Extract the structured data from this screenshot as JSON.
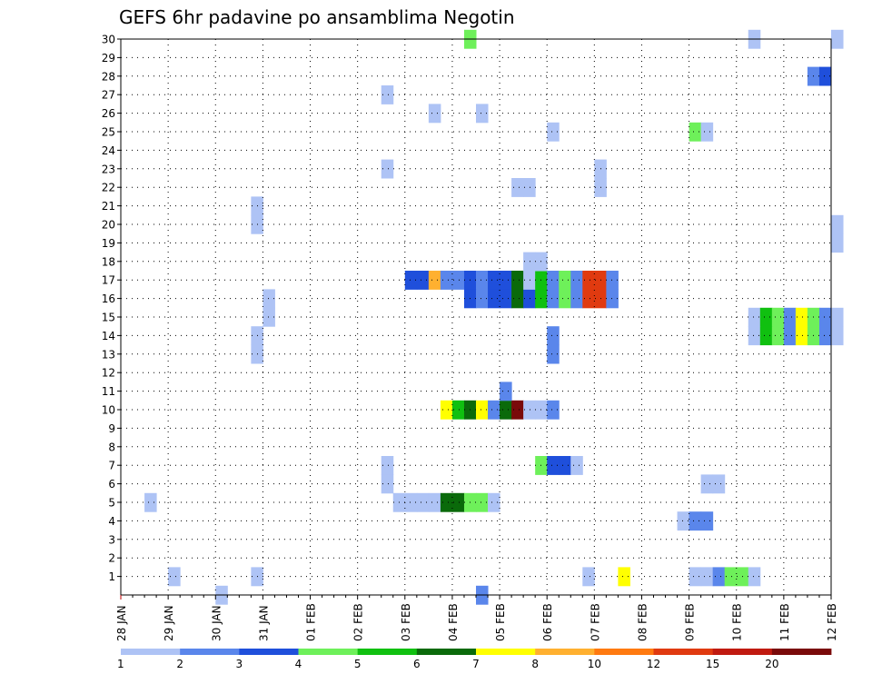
{
  "chart_data": {
    "type": "heatmap",
    "title": "GEFS 6hr padavine po ansamblima Negotin",
    "xlabel": "",
    "ylabel": "",
    "x_ticks": [
      "28 JAN",
      "29 JAN",
      "30 JAN",
      "31 JAN",
      "01 FEB",
      "02 FEB",
      "03 FEB",
      "04 FEB",
      "05 FEB",
      "06 FEB",
      "07 FEB",
      "08 FEB",
      "09 FEB",
      "10 FEB",
      "11 FEB",
      "12 FEB"
    ],
    "x_unit": "6-hour steps from 28 JAN 00Z (4 steps per day)",
    "y_ticks": [
      "1",
      "2",
      "3",
      "4",
      "5",
      "6",
      "7",
      "8",
      "9",
      "10",
      "11",
      "12",
      "13",
      "14",
      "15",
      "16",
      "17",
      "18",
      "19",
      "20",
      "21",
      "22",
      "23",
      "24",
      "25",
      "26",
      "27",
      "28",
      "29",
      "30"
    ],
    "y_range": [
      0,
      30
    ],
    "grid": true,
    "legend_position": "bottom",
    "legend": {
      "labels": [
        "1",
        "2",
        "3",
        "4",
        "5",
        "6",
        "7",
        "8",
        "10",
        "12",
        "15",
        "20"
      ],
      "colors": [
        "#aec3f5",
        "#5a86eb",
        "#1f4fdb",
        "#6ef05a",
        "#10c010",
        "#0a6a0a",
        "#ffff00",
        "#ffb030",
        "#ff7a10",
        "#e03a10",
        "#c01a10",
        "#7a0a0a"
      ]
    },
    "cells": [
      {
        "m": 1,
        "s": 4,
        "c": 1
      },
      {
        "m": 1,
        "s": 11,
        "c": 1
      },
      {
        "m": 1,
        "s": 39,
        "c": 1
      },
      {
        "m": 1,
        "s": 42,
        "c": 7
      },
      {
        "m": 1,
        "s": 48,
        "c": 1
      },
      {
        "m": 1,
        "s": 49,
        "c": 1
      },
      {
        "m": 1,
        "s": 50,
        "c": 2
      },
      {
        "m": 1,
        "s": 51,
        "c": 4
      },
      {
        "m": 1,
        "s": 52,
        "c": 4
      },
      {
        "m": 1,
        "s": 53,
        "c": 1
      },
      {
        "m": 0,
        "s": 8,
        "c": 1
      },
      {
        "m": 0,
        "s": 30,
        "c": 2
      },
      {
        "m": 4,
        "s": 47,
        "c": 1
      },
      {
        "m": 4,
        "s": 48,
        "c": 2
      },
      {
        "m": 4,
        "s": 49,
        "c": 2
      },
      {
        "m": 5,
        "s": 2,
        "c": 1
      },
      {
        "m": 5,
        "s": 23,
        "c": 1
      },
      {
        "m": 5,
        "s": 24,
        "c": 1
      },
      {
        "m": 5,
        "s": 25,
        "c": 1
      },
      {
        "m": 5,
        "s": 26,
        "c": 1
      },
      {
        "m": 5,
        "s": 27,
        "c": 6
      },
      {
        "m": 5,
        "s": 28,
        "c": 6
      },
      {
        "m": 5,
        "s": 29,
        "c": 4
      },
      {
        "m": 5,
        "s": 30,
        "c": 4
      },
      {
        "m": 5,
        "s": 31,
        "c": 1
      },
      {
        "m": 6,
        "s": 22,
        "c": 1
      },
      {
        "m": 6,
        "s": 49,
        "c": 1
      },
      {
        "m": 6,
        "s": 50,
        "c": 1
      },
      {
        "m": 7,
        "s": 22,
        "c": 1
      },
      {
        "m": 7,
        "s": 35,
        "c": 4
      },
      {
        "m": 7,
        "s": 36,
        "c": 3
      },
      {
        "m": 7,
        "s": 37,
        "c": 3
      },
      {
        "m": 7,
        "s": 38,
        "c": 1
      },
      {
        "m": 10,
        "s": 27,
        "c": 7
      },
      {
        "m": 10,
        "s": 28,
        "c": 5
      },
      {
        "m": 10,
        "s": 29,
        "c": 6
      },
      {
        "m": 10,
        "s": 30,
        "c": 7
      },
      {
        "m": 10,
        "s": 31,
        "c": 2
      },
      {
        "m": 10,
        "s": 32,
        "c": 6
      },
      {
        "m": 10,
        "s": 33,
        "c": 12
      },
      {
        "m": 10,
        "s": 34,
        "c": 1
      },
      {
        "m": 10,
        "s": 35,
        "c": 1
      },
      {
        "m": 10,
        "s": 36,
        "c": 2
      },
      {
        "m": 11,
        "s": 32,
        "c": 2
      },
      {
        "m": 13,
        "s": 36,
        "c": 2
      },
      {
        "m": 13,
        "s": 11,
        "c": 1
      },
      {
        "m": 14,
        "s": 11,
        "c": 1
      },
      {
        "m": 14,
        "s": 36,
        "c": 2
      },
      {
        "m": 14,
        "s": 53,
        "c": 1
      },
      {
        "m": 14,
        "s": 54,
        "c": 5
      },
      {
        "m": 14,
        "s": 55,
        "c": 4
      },
      {
        "m": 14,
        "s": 56,
        "c": 2
      },
      {
        "m": 14,
        "s": 57,
        "c": 7
      },
      {
        "m": 14,
        "s": 58,
        "c": 4
      },
      {
        "m": 14,
        "s": 59,
        "c": 2
      },
      {
        "m": 14,
        "s": 60,
        "c": 1
      },
      {
        "m": 15,
        "s": 12,
        "c": 1
      },
      {
        "m": 15,
        "s": 53,
        "c": 1
      },
      {
        "m": 15,
        "s": 54,
        "c": 5
      },
      {
        "m": 15,
        "s": 55,
        "c": 4
      },
      {
        "m": 15,
        "s": 56,
        "c": 2
      },
      {
        "m": 15,
        "s": 57,
        "c": 7
      },
      {
        "m": 15,
        "s": 58,
        "c": 4
      },
      {
        "m": 15,
        "s": 59,
        "c": 2
      },
      {
        "m": 15,
        "s": 60,
        "c": 1
      },
      {
        "m": 16,
        "s": 12,
        "c": 1
      },
      {
        "m": 16,
        "s": 29,
        "c": 3
      },
      {
        "m": 16,
        "s": 30,
        "c": 2
      },
      {
        "m": 16,
        "s": 31,
        "c": 3
      },
      {
        "m": 16,
        "s": 32,
        "c": 3
      },
      {
        "m": 16,
        "s": 33,
        "c": 6
      },
      {
        "m": 16,
        "s": 34,
        "c": 3
      },
      {
        "m": 16,
        "s": 35,
        "c": 5
      },
      {
        "m": 16,
        "s": 36,
        "c": 2
      },
      {
        "m": 16,
        "s": 37,
        "c": 4
      },
      {
        "m": 16,
        "s": 38,
        "c": 2
      },
      {
        "m": 16,
        "s": 39,
        "c": 10
      },
      {
        "m": 16,
        "s": 40,
        "c": 10
      },
      {
        "m": 16,
        "s": 41,
        "c": 2
      },
      {
        "m": 17,
        "s": 24,
        "c": 3
      },
      {
        "m": 17,
        "s": 25,
        "c": 3
      },
      {
        "m": 17,
        "s": 26,
        "c": 8
      },
      {
        "m": 17,
        "s": 27,
        "c": 2
      },
      {
        "m": 17,
        "s": 28,
        "c": 2
      },
      {
        "m": 17,
        "s": 29,
        "c": 3
      },
      {
        "m": 17,
        "s": 30,
        "c": 2
      },
      {
        "m": 17,
        "s": 31,
        "c": 3
      },
      {
        "m": 17,
        "s": 32,
        "c": 3
      },
      {
        "m": 17,
        "s": 33,
        "c": 6
      },
      {
        "m": 17,
        "s": 34,
        "c": 1
      },
      {
        "m": 17,
        "s": 35,
        "c": 5
      },
      {
        "m": 17,
        "s": 36,
        "c": 2
      },
      {
        "m": 17,
        "s": 37,
        "c": 4
      },
      {
        "m": 17,
        "s": 38,
        "c": 2
      },
      {
        "m": 17,
        "s": 39,
        "c": 10
      },
      {
        "m": 17,
        "s": 40,
        "c": 10
      },
      {
        "m": 17,
        "s": 41,
        "c": 2
      },
      {
        "m": 18,
        "s": 34,
        "c": 1
      },
      {
        "m": 18,
        "s": 35,
        "c": 1
      },
      {
        "m": 19,
        "s": 60,
        "c": 1
      },
      {
        "m": 20,
        "s": 60,
        "c": 1
      },
      {
        "m": 20,
        "s": 11,
        "c": 1
      },
      {
        "m": 21,
        "s": 11,
        "c": 1
      },
      {
        "m": 22,
        "s": 33,
        "c": 1
      },
      {
        "m": 22,
        "s": 34,
        "c": 1
      },
      {
        "m": 22,
        "s": 40,
        "c": 1
      },
      {
        "m": 23,
        "s": 22,
        "c": 1
      },
      {
        "m": 23,
        "s": 40,
        "c": 1
      },
      {
        "m": 25,
        "s": 36,
        "c": 1
      },
      {
        "m": 25,
        "s": 48,
        "c": 4
      },
      {
        "m": 25,
        "s": 49,
        "c": 1
      },
      {
        "m": 26,
        "s": 26,
        "c": 1
      },
      {
        "m": 26,
        "s": 30,
        "c": 1
      },
      {
        "m": 27,
        "s": 22,
        "c": 1
      },
      {
        "m": 28,
        "s": 58,
        "c": 2
      },
      {
        "m": 28,
        "s": 59,
        "c": 3
      },
      {
        "m": 30,
        "s": 29,
        "c": 4
      },
      {
        "m": 30,
        "s": 53,
        "c": 1
      },
      {
        "m": 30,
        "s": 60,
        "c": 1
      }
    ]
  }
}
